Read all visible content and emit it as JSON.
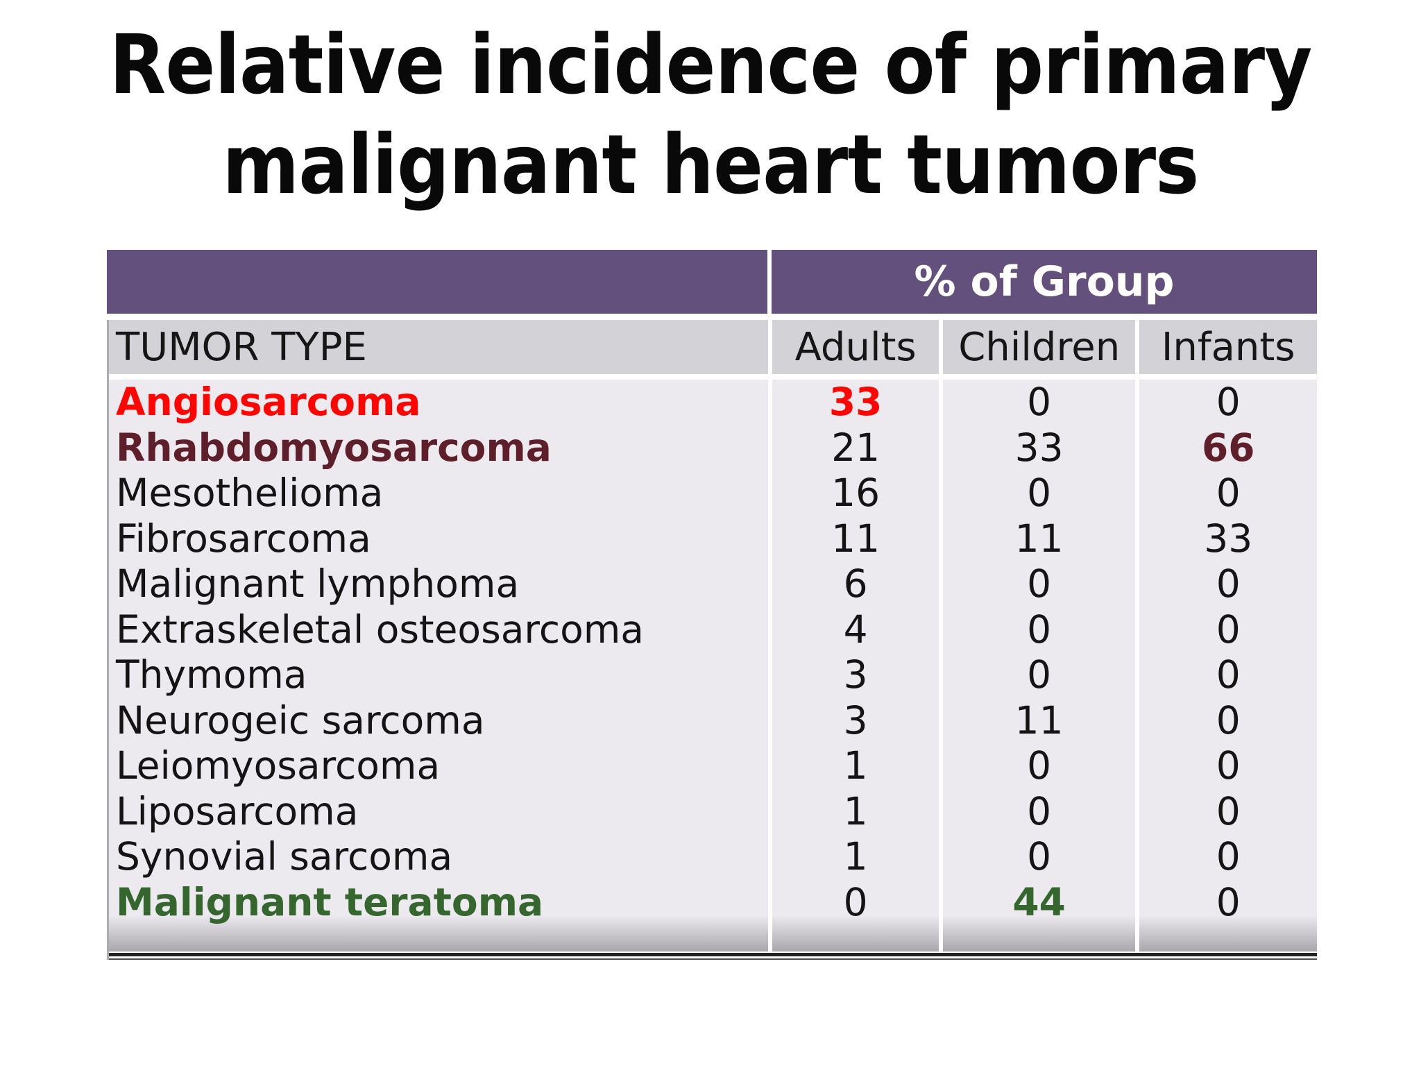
{
  "slide": {
    "title_line1": "Relative incidence of primary",
    "title_line2": "malignant heart tumors"
  },
  "table": {
    "group_header": "% of Group",
    "row_header": "TUMOR TYPE",
    "columns": [
      "Adults",
      "Children",
      "Infants"
    ],
    "rows": [
      {
        "tumor": "Angiosarcoma",
        "adults": "33",
        "children": "0",
        "infants": "0",
        "tumor_style": "red",
        "adults_style": "red"
      },
      {
        "tumor": "Rhabdomyosarcoma",
        "adults": "21",
        "children": "33",
        "infants": "66",
        "tumor_style": "maroon",
        "infants_style": "maroon"
      },
      {
        "tumor": "Mesothelioma",
        "adults": "16",
        "children": "0",
        "infants": "0"
      },
      {
        "tumor": "Fibrosarcoma",
        "adults": "11",
        "children": "11",
        "infants": "33"
      },
      {
        "tumor": "Malignant lymphoma",
        "adults": "6",
        "children": "0",
        "infants": "0"
      },
      {
        "tumor": "Extraskeletal osteosarcoma",
        "adults": "4",
        "children": "0",
        "infants": "0"
      },
      {
        "tumor": "Thymoma",
        "adults": "3",
        "children": "0",
        "infants": "0"
      },
      {
        "tumor": "Neurogeic sarcoma",
        "adults": "3",
        "children": "11",
        "infants": "0"
      },
      {
        "tumor": "Leiomyosarcoma",
        "adults": "1",
        "children": "0",
        "infants": "0"
      },
      {
        "tumor": "Liposarcoma",
        "adults": "1",
        "children": "0",
        "infants": "0"
      },
      {
        "tumor": "Synovial sarcoma",
        "adults": "1",
        "children": "0",
        "infants": "0"
      },
      {
        "tumor": "Malignant teratoma",
        "adults": "0",
        "children": "44",
        "infants": "0",
        "tumor_style": "green",
        "children_style": "green"
      }
    ]
  },
  "colors": {
    "header_purple": "#64507C",
    "column_header_grey": "#D3D2D6",
    "body_grey": "#ECEAEE",
    "red": "#FE0503",
    "maroon": "#5E1F2A",
    "green": "#34662E"
  }
}
